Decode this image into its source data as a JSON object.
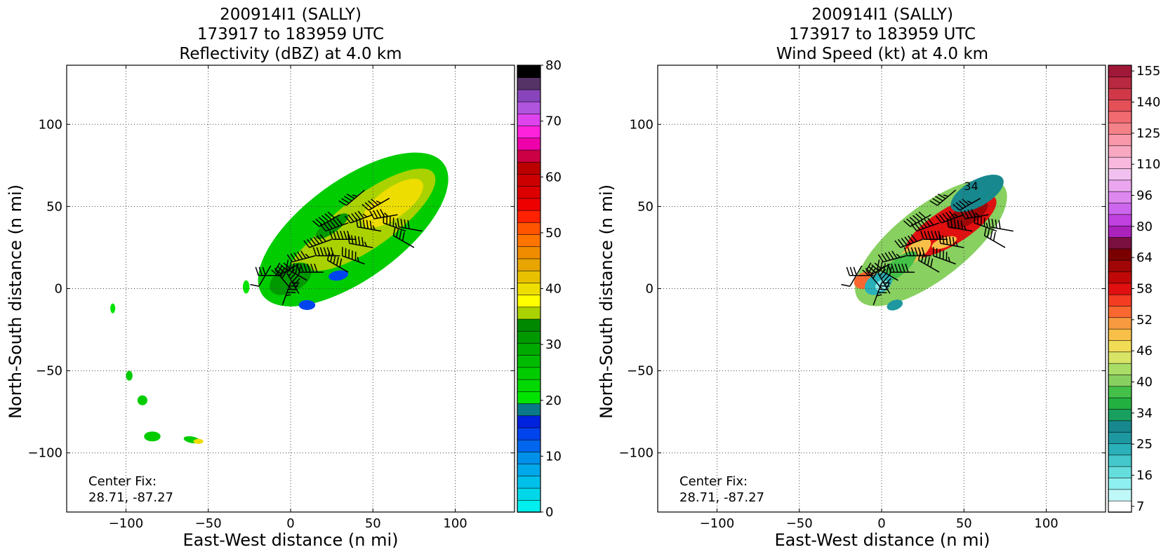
{
  "chart_data": [
    {
      "type": "heatmap",
      "title_lines": [
        "200914I1 (SALLY)",
        "173917 to 183959 UTC",
        "Reflectivity (dBZ) at 4.0 km"
      ],
      "xlabel": "East-West distance (n mi)",
      "ylabel": "North-South distance (n mi)",
      "xlim": [
        -136,
        136
      ],
      "ylim": [
        -136,
        136
      ],
      "xticks": [
        -100,
        -50,
        0,
        50,
        100
      ],
      "yticks": [
        -100,
        -50,
        0,
        50,
        100
      ],
      "grid": true,
      "annotation_lines": [
        "Center Fix:",
        "28.71, -87.27"
      ],
      "colorbar": {
        "label_values": [
          "0",
          "10",
          "20",
          "30",
          "40",
          "50",
          "60",
          "70",
          "80"
        ],
        "colors": [
          "#00eeee",
          "#00d8ea",
          "#00c0ea",
          "#00a8ea",
          "#0090ea",
          "#0066ee",
          "#0044ee",
          "#0022dd",
          "#0a7a8a",
          "#00e400",
          "#00d800",
          "#00cc00",
          "#00bb00",
          "#00aa00",
          "#009900",
          "#008800",
          "#aad200",
          "#ffff00",
          "#eedd00",
          "#e8c000",
          "#e8a500",
          "#f08c00",
          "#ff7400",
          "#ff5400",
          "#ff2200",
          "#ee0000",
          "#dd0000",
          "#cc0000",
          "#bb0000",
          "#cc0044",
          "#ee00aa",
          "#ff22dd",
          "#dd44ee",
          "#b055dd",
          "#8844bb",
          "#553366",
          "#000000"
        ]
      },
      "storm_fields": [
        {
          "cx": 38,
          "cy": 36,
          "rx": 68,
          "ry": 30,
          "rot": 36,
          "color": "#00cc00"
        },
        {
          "cx": 48,
          "cy": 42,
          "rx": 48,
          "ry": 16,
          "rot": 36,
          "color": "#aad200"
        },
        {
          "cx": 62,
          "cy": 52,
          "rx": 22,
          "ry": 9,
          "rot": 36,
          "color": "#eedd00"
        },
        {
          "cx": 20,
          "cy": 25,
          "rx": 24,
          "ry": 8,
          "rot": 36,
          "color": "#aad200"
        },
        {
          "cx": 0,
          "cy": 6,
          "rx": 14,
          "ry": 8,
          "rot": 30,
          "color": "#009900"
        },
        {
          "cx": 25,
          "cy": 38,
          "rx": 12,
          "ry": 4,
          "rot": 36,
          "color": "#009900"
        },
        {
          "cx": 29,
          "cy": 8,
          "rx": 6,
          "ry": 3,
          "rot": 10,
          "color": "#0044ee"
        },
        {
          "cx": 10,
          "cy": -10,
          "rx": 5,
          "ry": 3,
          "rot": 0,
          "color": "#0044ee"
        },
        {
          "cx": -27,
          "cy": 1,
          "rx": 2,
          "ry": 4,
          "rot": 0,
          "color": "#00e400"
        },
        {
          "cx": -108,
          "cy": -12,
          "rx": 1.5,
          "ry": 3,
          "rot": 0,
          "color": "#00e400"
        },
        {
          "cx": -98,
          "cy": -53,
          "rx": 2,
          "ry": 3,
          "rot": 0,
          "color": "#00cc00"
        },
        {
          "cx": -90,
          "cy": -68,
          "rx": 3,
          "ry": 3,
          "rot": 0,
          "color": "#00cc00"
        },
        {
          "cx": -84,
          "cy": -90,
          "rx": 5,
          "ry": 3,
          "rot": 0,
          "color": "#00cc00"
        },
        {
          "cx": -60,
          "cy": -92,
          "rx": 5,
          "ry": 2,
          "rot": -10,
          "color": "#00cc00"
        },
        {
          "cx": -56,
          "cy": -93,
          "rx": 3,
          "ry": 1.5,
          "rot": 0,
          "color": "#eedd00"
        }
      ]
    },
    {
      "type": "heatmap",
      "title_lines": [
        "200914I1 (SALLY)",
        "173917 to 183959 UTC",
        "Wind Speed (kt) at 4.0 km"
      ],
      "xlabel": "East-West distance (n mi)",
      "ylabel": "North-South distance (n mi)",
      "xlim": [
        -136,
        136
      ],
      "ylim": [
        -136,
        136
      ],
      "xticks": [
        -100,
        -50,
        0,
        50,
        100
      ],
      "yticks": [
        -100,
        -50,
        0,
        50,
        100
      ],
      "grid": true,
      "annotation_lines": [
        "Center Fix:",
        "28.71, -87.27"
      ],
      "contour_label": "34",
      "colorbar": {
        "label_values": [
          "7",
          "16",
          "25",
          "34",
          "40",
          "46",
          "52",
          "58",
          "64",
          "80",
          "96",
          "110",
          "125",
          "140",
          "155"
        ],
        "colors": [
          "#ffffff",
          "#bff8f8",
          "#8ef0f0",
          "#66dddd",
          "#44c8cc",
          "#2ab0b8",
          "#1e98a0",
          "#17888e",
          "#19a060",
          "#22b040",
          "#44c048",
          "#88d060",
          "#aadd66",
          "#d8e466",
          "#f2dc55",
          "#f8c048",
          "#f89a40",
          "#f86830",
          "#f43c22",
          "#e01010",
          "#c00808",
          "#a00606",
          "#7a0000",
          "#7a1040",
          "#aa22bb",
          "#c040e0",
          "#cc66ee",
          "#dd88ee",
          "#eaa6ee",
          "#f2c0ee",
          "#f8b8dd",
          "#f8a8c0",
          "#f898aa",
          "#f48088",
          "#f06a70",
          "#e45058",
          "#d03848",
          "#b82840",
          "#a01838"
        ]
      },
      "storm_fields": [
        {
          "cx": 30,
          "cy": 28,
          "rx": 56,
          "ry": 22,
          "rot": 38,
          "color": "#88d060"
        },
        {
          "cx": 42,
          "cy": 38,
          "rx": 32,
          "ry": 11,
          "rot": 32,
          "color": "#e01010"
        },
        {
          "cx": 52,
          "cy": 45,
          "rx": 14,
          "ry": 6,
          "rot": 30,
          "color": "#a00606"
        },
        {
          "cx": 58,
          "cy": 58,
          "rx": 18,
          "ry": 8,
          "rot": 30,
          "color": "#17888e"
        },
        {
          "cx": 20,
          "cy": 22,
          "rx": 12,
          "ry": 5,
          "rot": 38,
          "color": "#f8c048"
        },
        {
          "cx": 10,
          "cy": 13,
          "rx": 14,
          "ry": 5,
          "rot": 40,
          "color": "#44c048"
        },
        {
          "cx": -10,
          "cy": 5,
          "rx": 7,
          "ry": 5,
          "rot": 20,
          "color": "#f86830"
        },
        {
          "cx": -2,
          "cy": 3,
          "rx": 9,
          "ry": 6,
          "rot": 30,
          "color": "#2ab0b8"
        },
        {
          "cx": 0,
          "cy": 2,
          "rx": 4,
          "ry": 3,
          "rot": 30,
          "color": "#8ef0f0"
        },
        {
          "cx": 8,
          "cy": -10,
          "rx": 5,
          "ry": 3,
          "rot": 20,
          "color": "#1e98a0"
        },
        {
          "cx": 38,
          "cy": 28,
          "rx": 8,
          "ry": 3,
          "rot": 20,
          "color": "#f8c048"
        }
      ]
    }
  ],
  "wind_barbs": [
    {
      "x": -12,
      "y": 14,
      "dir": 210,
      "speed": 10
    },
    {
      "x": -5,
      "y": 8,
      "dir": 270,
      "speed": 30
    },
    {
      "x": 0,
      "y": 0,
      "dir": 320,
      "speed": 40
    },
    {
      "x": -5,
      "y": -10,
      "dir": 20,
      "speed": 45
    },
    {
      "x": 5,
      "y": 15,
      "dir": 240,
      "speed": 50
    },
    {
      "x": 10,
      "y": 5,
      "dir": 300,
      "speed": 50
    },
    {
      "x": 5,
      "y": -3,
      "dir": 330,
      "speed": 55
    },
    {
      "x": 15,
      "y": 20,
      "dir": 255,
      "speed": 55
    },
    {
      "x": 20,
      "y": 10,
      "dir": 270,
      "speed": 60
    },
    {
      "x": 25,
      "y": 30,
      "dir": 250,
      "speed": 60
    },
    {
      "x": 30,
      "y": 20,
      "dir": 270,
      "speed": 60
    },
    {
      "x": 35,
      "y": 40,
      "dir": 250,
      "speed": 65
    },
    {
      "x": 40,
      "y": 30,
      "dir": 270,
      "speed": 65
    },
    {
      "x": 45,
      "y": 15,
      "dir": 290,
      "speed": 55
    },
    {
      "x": 50,
      "y": 45,
      "dir": 250,
      "speed": 55
    },
    {
      "x": 55,
      "y": 35,
      "dir": 280,
      "speed": 55
    },
    {
      "x": 60,
      "y": 55,
      "dir": 240,
      "speed": 45
    },
    {
      "x": 65,
      "y": 45,
      "dir": 260,
      "speed": 45
    },
    {
      "x": 70,
      "y": 35,
      "dir": 290,
      "speed": 45
    },
    {
      "x": 75,
      "y": 25,
      "dir": 300,
      "speed": 40
    },
    {
      "x": 80,
      "y": 35,
      "dir": 280,
      "speed": 40
    },
    {
      "x": 45,
      "y": 60,
      "dir": 230,
      "speed": 45
    },
    {
      "x": 30,
      "y": 45,
      "dir": 240,
      "speed": 60
    },
    {
      "x": 50,
      "y": 25,
      "dir": 280,
      "speed": 55
    },
    {
      "x": 35,
      "y": 10,
      "dir": 300,
      "speed": 50
    }
  ]
}
